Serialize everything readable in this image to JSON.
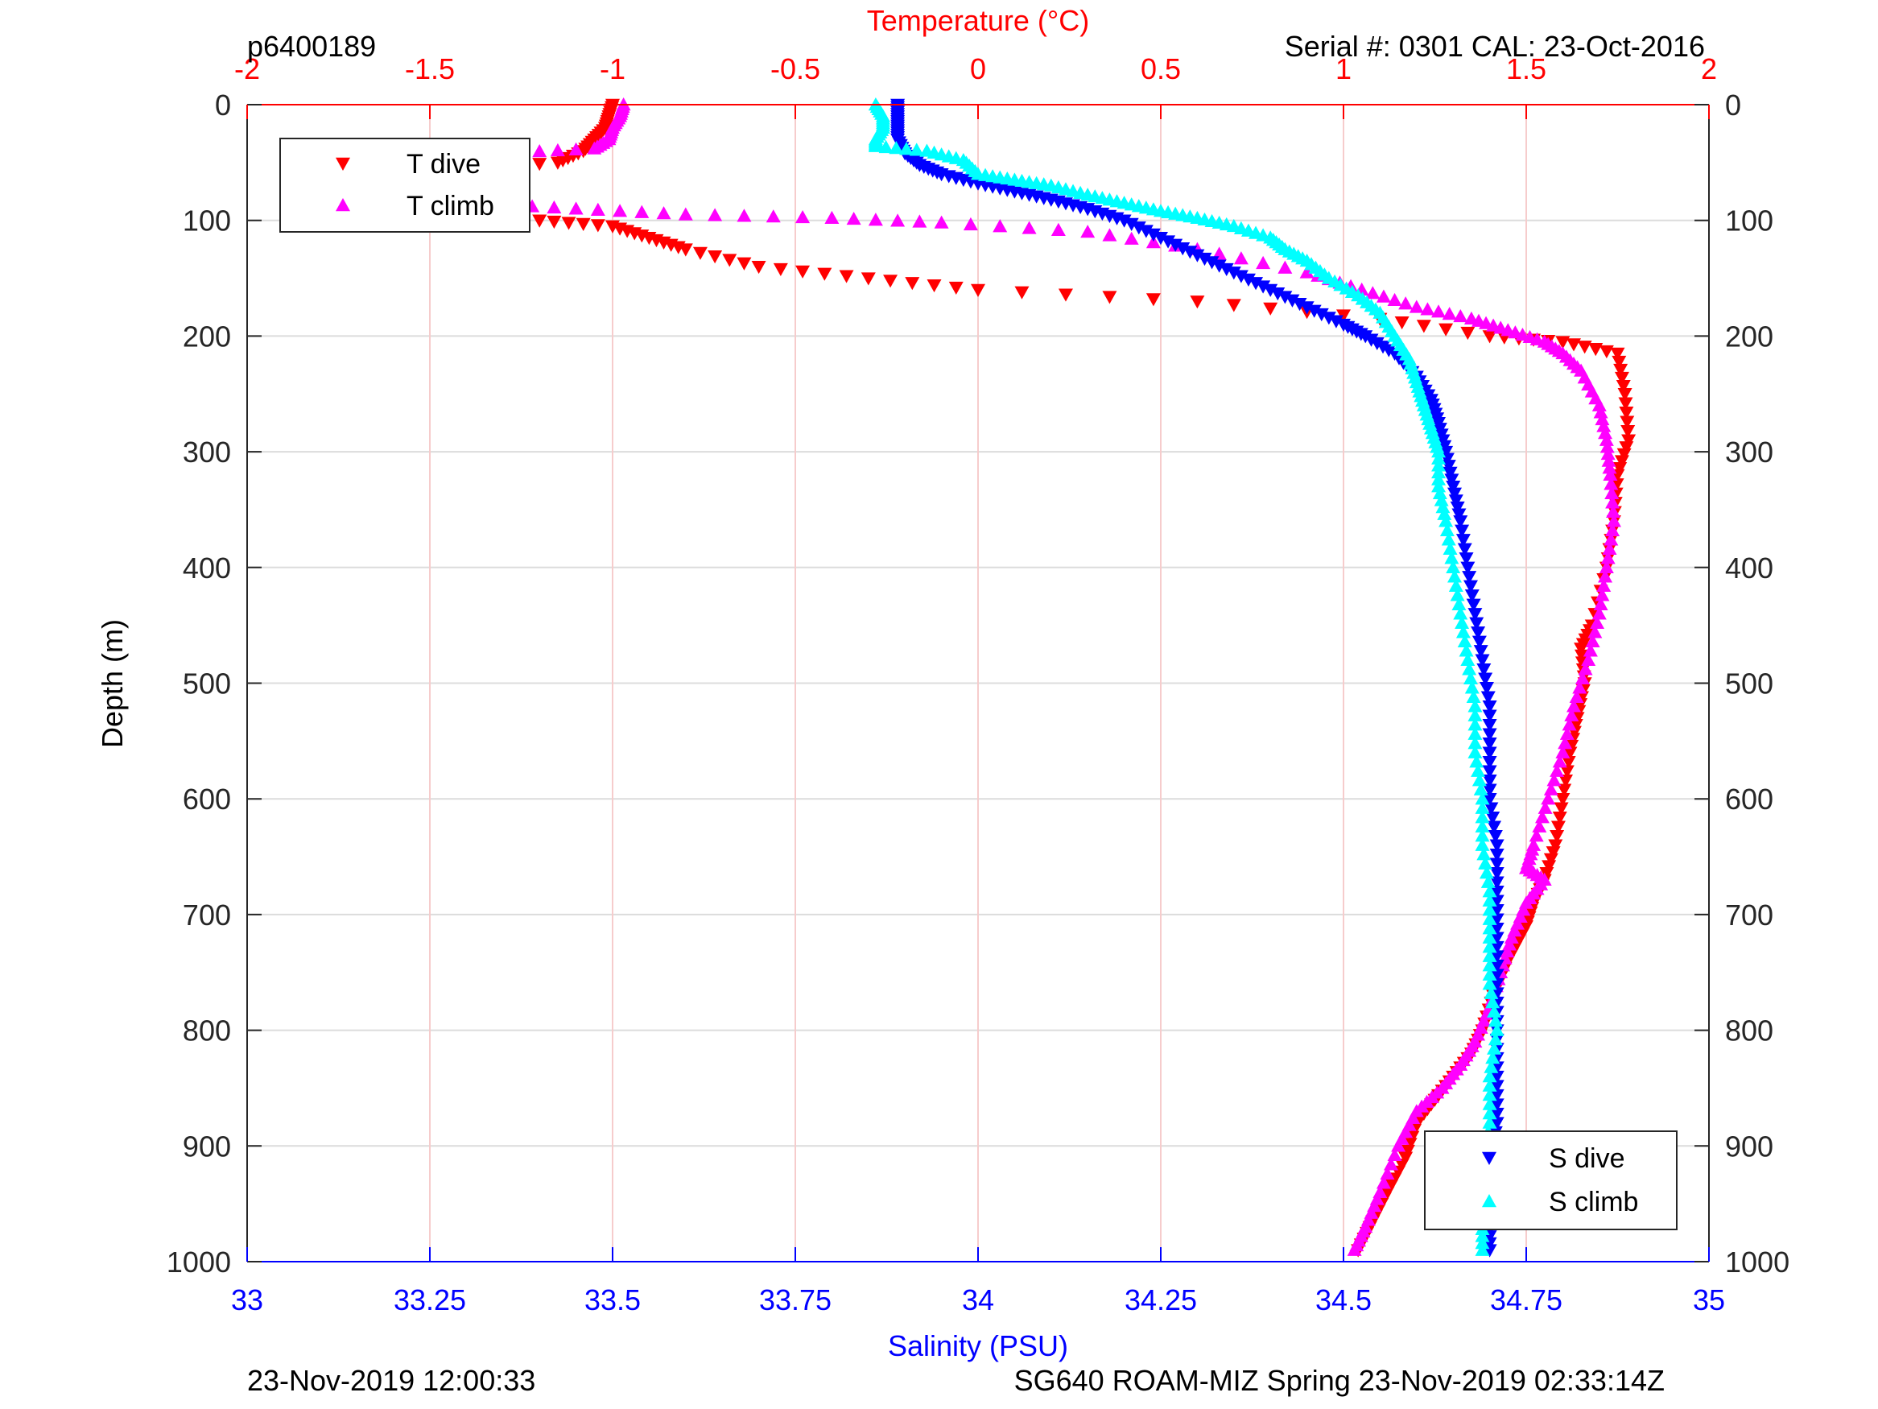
{
  "chart_data": {
    "type": "scatter",
    "title_left": "p6400189",
    "title_right": "Serial #: 0301  CAL: 23-Oct-2016",
    "footer_left": "23-Nov-2019 12:00:33",
    "footer_right": "SG640 ROAM-MIZ Spring 23-Nov-2019 02:33:14Z",
    "ylabel": "Depth (m)",
    "ylim": [
      0,
      1000
    ],
    "y_ticks": [
      0,
      100,
      200,
      300,
      400,
      500,
      600,
      700,
      800,
      900,
      1000
    ],
    "y_reversed": true,
    "top_axis": {
      "label": "Temperature (°C)",
      "color": "#ff0000",
      "lim": [
        -2,
        2
      ],
      "ticks": [
        -2,
        -1.5,
        -1,
        -0.5,
        0,
        0.5,
        1,
        1.5,
        2
      ]
    },
    "bottom_axis": {
      "label": "Salinity (PSU)",
      "color": "#0000ff",
      "lim": [
        33,
        35
      ],
      "ticks": [
        33,
        33.25,
        33.5,
        33.75,
        34,
        34.25,
        34.5,
        34.75,
        35
      ]
    },
    "grid": true,
    "legend_top_left": [
      "T dive",
      "T climb"
    ],
    "legend_bottom_right": [
      "S dive",
      "S climb"
    ],
    "series": [
      {
        "name": "T dive",
        "axis": "temperature",
        "color": "#ff0000",
        "marker": "triangle-down",
        "points": [
          [
            -1.0,
            0
          ],
          [
            -1.01,
            10
          ],
          [
            -1.02,
            20
          ],
          [
            -1.05,
            30
          ],
          [
            -1.08,
            40
          ],
          [
            -1.15,
            50
          ],
          [
            -1.4,
            55
          ],
          [
            -1.65,
            60
          ],
          [
            -1.72,
            65
          ],
          [
            -1.7,
            75
          ],
          [
            -1.62,
            85
          ],
          [
            -1.45,
            95
          ],
          [
            -1.2,
            100
          ],
          [
            -1.0,
            105
          ],
          [
            -0.9,
            115
          ],
          [
            -0.8,
            125
          ],
          [
            -0.6,
            140
          ],
          [
            -0.3,
            150
          ],
          [
            0.0,
            160
          ],
          [
            0.6,
            170
          ],
          [
            1.1,
            185
          ],
          [
            1.4,
            200
          ],
          [
            1.6,
            205
          ],
          [
            1.75,
            215
          ],
          [
            1.77,
            250
          ],
          [
            1.78,
            290
          ],
          [
            1.75,
            320
          ],
          [
            1.74,
            360
          ],
          [
            1.72,
            400
          ],
          [
            1.68,
            450
          ],
          [
            1.65,
            470
          ],
          [
            1.66,
            500
          ],
          [
            1.64,
            530
          ],
          [
            1.62,
            560
          ],
          [
            1.6,
            600
          ],
          [
            1.58,
            640
          ],
          [
            1.55,
            670
          ],
          [
            1.52,
            690
          ],
          [
            1.5,
            710
          ],
          [
            1.45,
            740
          ],
          [
            1.41,
            770
          ],
          [
            1.38,
            800
          ],
          [
            1.35,
            820
          ],
          [
            1.3,
            840
          ],
          [
            1.25,
            860
          ],
          [
            1.2,
            880
          ],
          [
            1.17,
            910
          ],
          [
            1.12,
            940
          ],
          [
            1.08,
            965
          ],
          [
            1.04,
            990
          ]
        ]
      },
      {
        "name": "T climb",
        "axis": "temperature",
        "color": "#ff00ff",
        "marker": "triangle-up",
        "points": [
          [
            -0.97,
            0
          ],
          [
            -0.98,
            10
          ],
          [
            -1.0,
            20
          ],
          [
            -1.01,
            30
          ],
          [
            -1.05,
            38
          ],
          [
            -1.3,
            42
          ],
          [
            -1.6,
            46
          ],
          [
            -1.7,
            52
          ],
          [
            -1.72,
            60
          ],
          [
            -1.72,
            70
          ],
          [
            -1.6,
            78
          ],
          [
            -1.4,
            85
          ],
          [
            -1.1,
            90
          ],
          [
            -0.8,
            95
          ],
          [
            -0.4,
            98
          ],
          [
            -0.1,
            102
          ],
          [
            0.3,
            110
          ],
          [
            0.6,
            125
          ],
          [
            0.9,
            145
          ],
          [
            1.05,
            160
          ],
          [
            1.2,
            175
          ],
          [
            1.35,
            185
          ],
          [
            1.45,
            195
          ],
          [
            1.55,
            205
          ],
          [
            1.6,
            215
          ],
          [
            1.65,
            230
          ],
          [
            1.7,
            260
          ],
          [
            1.72,
            290
          ],
          [
            1.73,
            320
          ],
          [
            1.74,
            360
          ],
          [
            1.72,
            400
          ],
          [
            1.7,
            440
          ],
          [
            1.67,
            480
          ],
          [
            1.63,
            520
          ],
          [
            1.6,
            560
          ],
          [
            1.56,
            600
          ],
          [
            1.52,
            640
          ],
          [
            1.5,
            660
          ],
          [
            1.55,
            670
          ],
          [
            1.5,
            690
          ],
          [
            1.46,
            720
          ],
          [
            1.43,
            750
          ],
          [
            1.4,
            780
          ],
          [
            1.36,
            810
          ],
          [
            1.32,
            830
          ],
          [
            1.27,
            850
          ],
          [
            1.2,
            870
          ],
          [
            1.15,
            900
          ],
          [
            1.1,
            940
          ],
          [
            1.06,
            970
          ],
          [
            1.03,
            990
          ]
        ]
      },
      {
        "name": "S dive",
        "axis": "salinity",
        "color": "#0000ff",
        "marker": "triangle-down",
        "points": [
          [
            33.89,
            0
          ],
          [
            33.89,
            10
          ],
          [
            33.89,
            20
          ],
          [
            33.89,
            30
          ],
          [
            33.9,
            42
          ],
          [
            33.92,
            52
          ],
          [
            33.95,
            60
          ],
          [
            34.0,
            68
          ],
          [
            34.05,
            75
          ],
          [
            34.1,
            82
          ],
          [
            34.15,
            90
          ],
          [
            34.2,
            100
          ],
          [
            34.25,
            115
          ],
          [
            34.3,
            130
          ],
          [
            34.35,
            145
          ],
          [
            34.4,
            160
          ],
          [
            34.45,
            175
          ],
          [
            34.5,
            190
          ],
          [
            34.53,
            200
          ],
          [
            34.57,
            215
          ],
          [
            34.6,
            235
          ],
          [
            34.62,
            255
          ],
          [
            34.63,
            275
          ],
          [
            34.64,
            300
          ],
          [
            34.65,
            330
          ],
          [
            34.66,
            360
          ],
          [
            34.67,
            400
          ],
          [
            34.68,
            440
          ],
          [
            34.69,
            480
          ],
          [
            34.7,
            520
          ],
          [
            34.7,
            560
          ],
          [
            34.7,
            600
          ],
          [
            34.71,
            640
          ],
          [
            34.71,
            680
          ],
          [
            34.71,
            720
          ],
          [
            34.71,
            760
          ],
          [
            34.71,
            800
          ],
          [
            34.71,
            840
          ],
          [
            34.71,
            880
          ],
          [
            34.7,
            920
          ],
          [
            34.7,
            960
          ],
          [
            34.7,
            990
          ]
        ]
      },
      {
        "name": "S climb",
        "axis": "salinity",
        "color": "#00ffff",
        "marker": "triangle-up",
        "points": [
          [
            33.86,
            0
          ],
          [
            33.87,
            10
          ],
          [
            33.87,
            20
          ],
          [
            33.86,
            30
          ],
          [
            33.86,
            36
          ],
          [
            33.93,
            40
          ],
          [
            33.98,
            48
          ],
          [
            34.0,
            60
          ],
          [
            34.05,
            65
          ],
          [
            34.1,
            70
          ],
          [
            34.15,
            78
          ],
          [
            34.2,
            85
          ],
          [
            34.25,
            92
          ],
          [
            34.3,
            98
          ],
          [
            34.35,
            105
          ],
          [
            34.4,
            115
          ],
          [
            34.42,
            125
          ],
          [
            34.45,
            135
          ],
          [
            34.48,
            150
          ],
          [
            34.52,
            165
          ],
          [
            34.55,
            180
          ],
          [
            34.57,
            200
          ],
          [
            34.59,
            220
          ],
          [
            34.6,
            240
          ],
          [
            34.61,
            260
          ],
          [
            34.62,
            280
          ],
          [
            34.63,
            300
          ],
          [
            34.63,
            330
          ],
          [
            34.64,
            360
          ],
          [
            34.65,
            400
          ],
          [
            34.66,
            440
          ],
          [
            34.67,
            480
          ],
          [
            34.68,
            520
          ],
          [
            34.68,
            560
          ],
          [
            34.69,
            600
          ],
          [
            34.69,
            640
          ],
          [
            34.7,
            680
          ],
          [
            34.7,
            720
          ],
          [
            34.7,
            760
          ],
          [
            34.71,
            800
          ],
          [
            34.7,
            840
          ],
          [
            34.7,
            880
          ],
          [
            34.69,
            920
          ],
          [
            34.69,
            960
          ],
          [
            34.69,
            990
          ]
        ]
      }
    ]
  }
}
